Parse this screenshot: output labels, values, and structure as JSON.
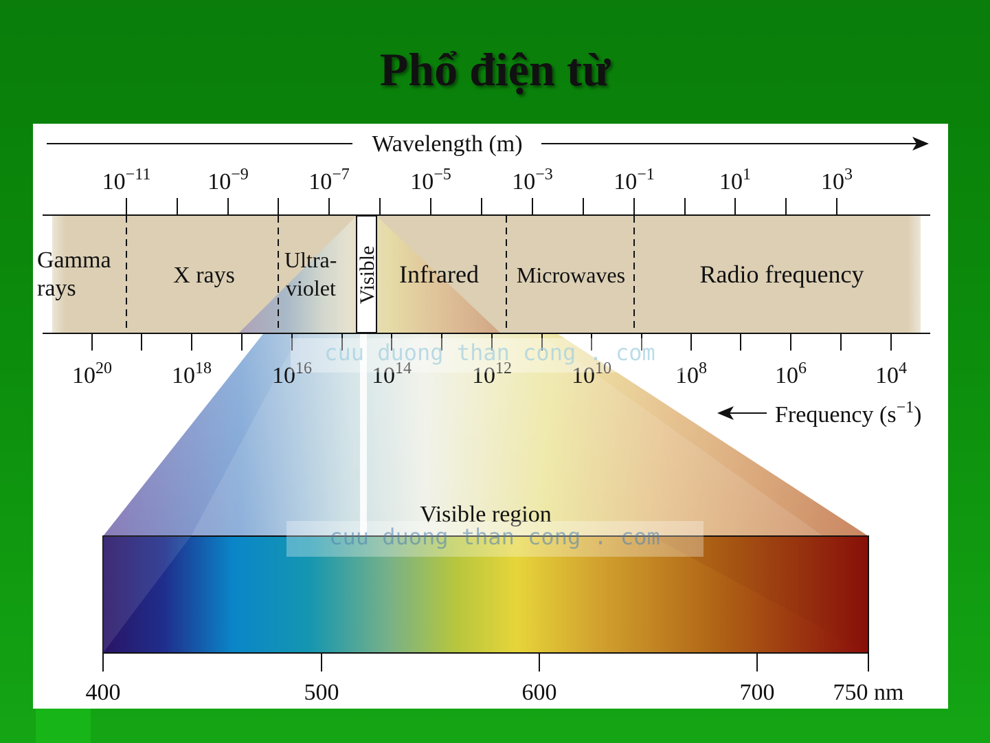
{
  "slide": {
    "title": "Phổ điện từ"
  },
  "wavelength_axis": {
    "label": "Wavelength (m)",
    "ticks": [
      {
        "base": "10",
        "exp": "−11"
      },
      {
        "base": "10",
        "exp": "−9"
      },
      {
        "base": "10",
        "exp": "−7"
      },
      {
        "base": "10",
        "exp": "−5"
      },
      {
        "base": "10",
        "exp": "−3"
      },
      {
        "base": "10",
        "exp": "−1"
      },
      {
        "base": "10",
        "exp": "1"
      },
      {
        "base": "10",
        "exp": "3"
      }
    ]
  },
  "frequency_axis": {
    "label": "Frequency (s",
    "label_exp": "−1",
    "label_close": ")",
    "ticks": [
      {
        "base": "10",
        "exp": "20"
      },
      {
        "base": "10",
        "exp": "18"
      },
      {
        "base": "10",
        "exp": "16"
      },
      {
        "base": "10",
        "exp": "14"
      },
      {
        "base": "10",
        "exp": "12"
      },
      {
        "base": "10",
        "exp": "10"
      },
      {
        "base": "10",
        "exp": "8"
      },
      {
        "base": "10",
        "exp": "6"
      },
      {
        "base": "10",
        "exp": "4"
      }
    ]
  },
  "regions": {
    "gamma_line1": "Gamma",
    "gamma_line2": "rays",
    "xrays": "X rays",
    "uv_line1": "Ultra-",
    "uv_line2": "violet",
    "visible": "Visible",
    "infrared": "Infrared",
    "microwaves": "Microwaves",
    "radio": "Radio frequency"
  },
  "visible_region": {
    "label": "Visible region",
    "ticks": [
      "400",
      "500",
      "600",
      "700",
      "750 nm"
    ]
  },
  "watermark": "cuu duong than cong . com",
  "colors": {
    "background": "#0b8a0b",
    "band": "#dccfb4",
    "violet": "#2a1466",
    "blue": "#0a86c8",
    "yellow": "#e6d53a",
    "red": "#8a0e0a"
  }
}
